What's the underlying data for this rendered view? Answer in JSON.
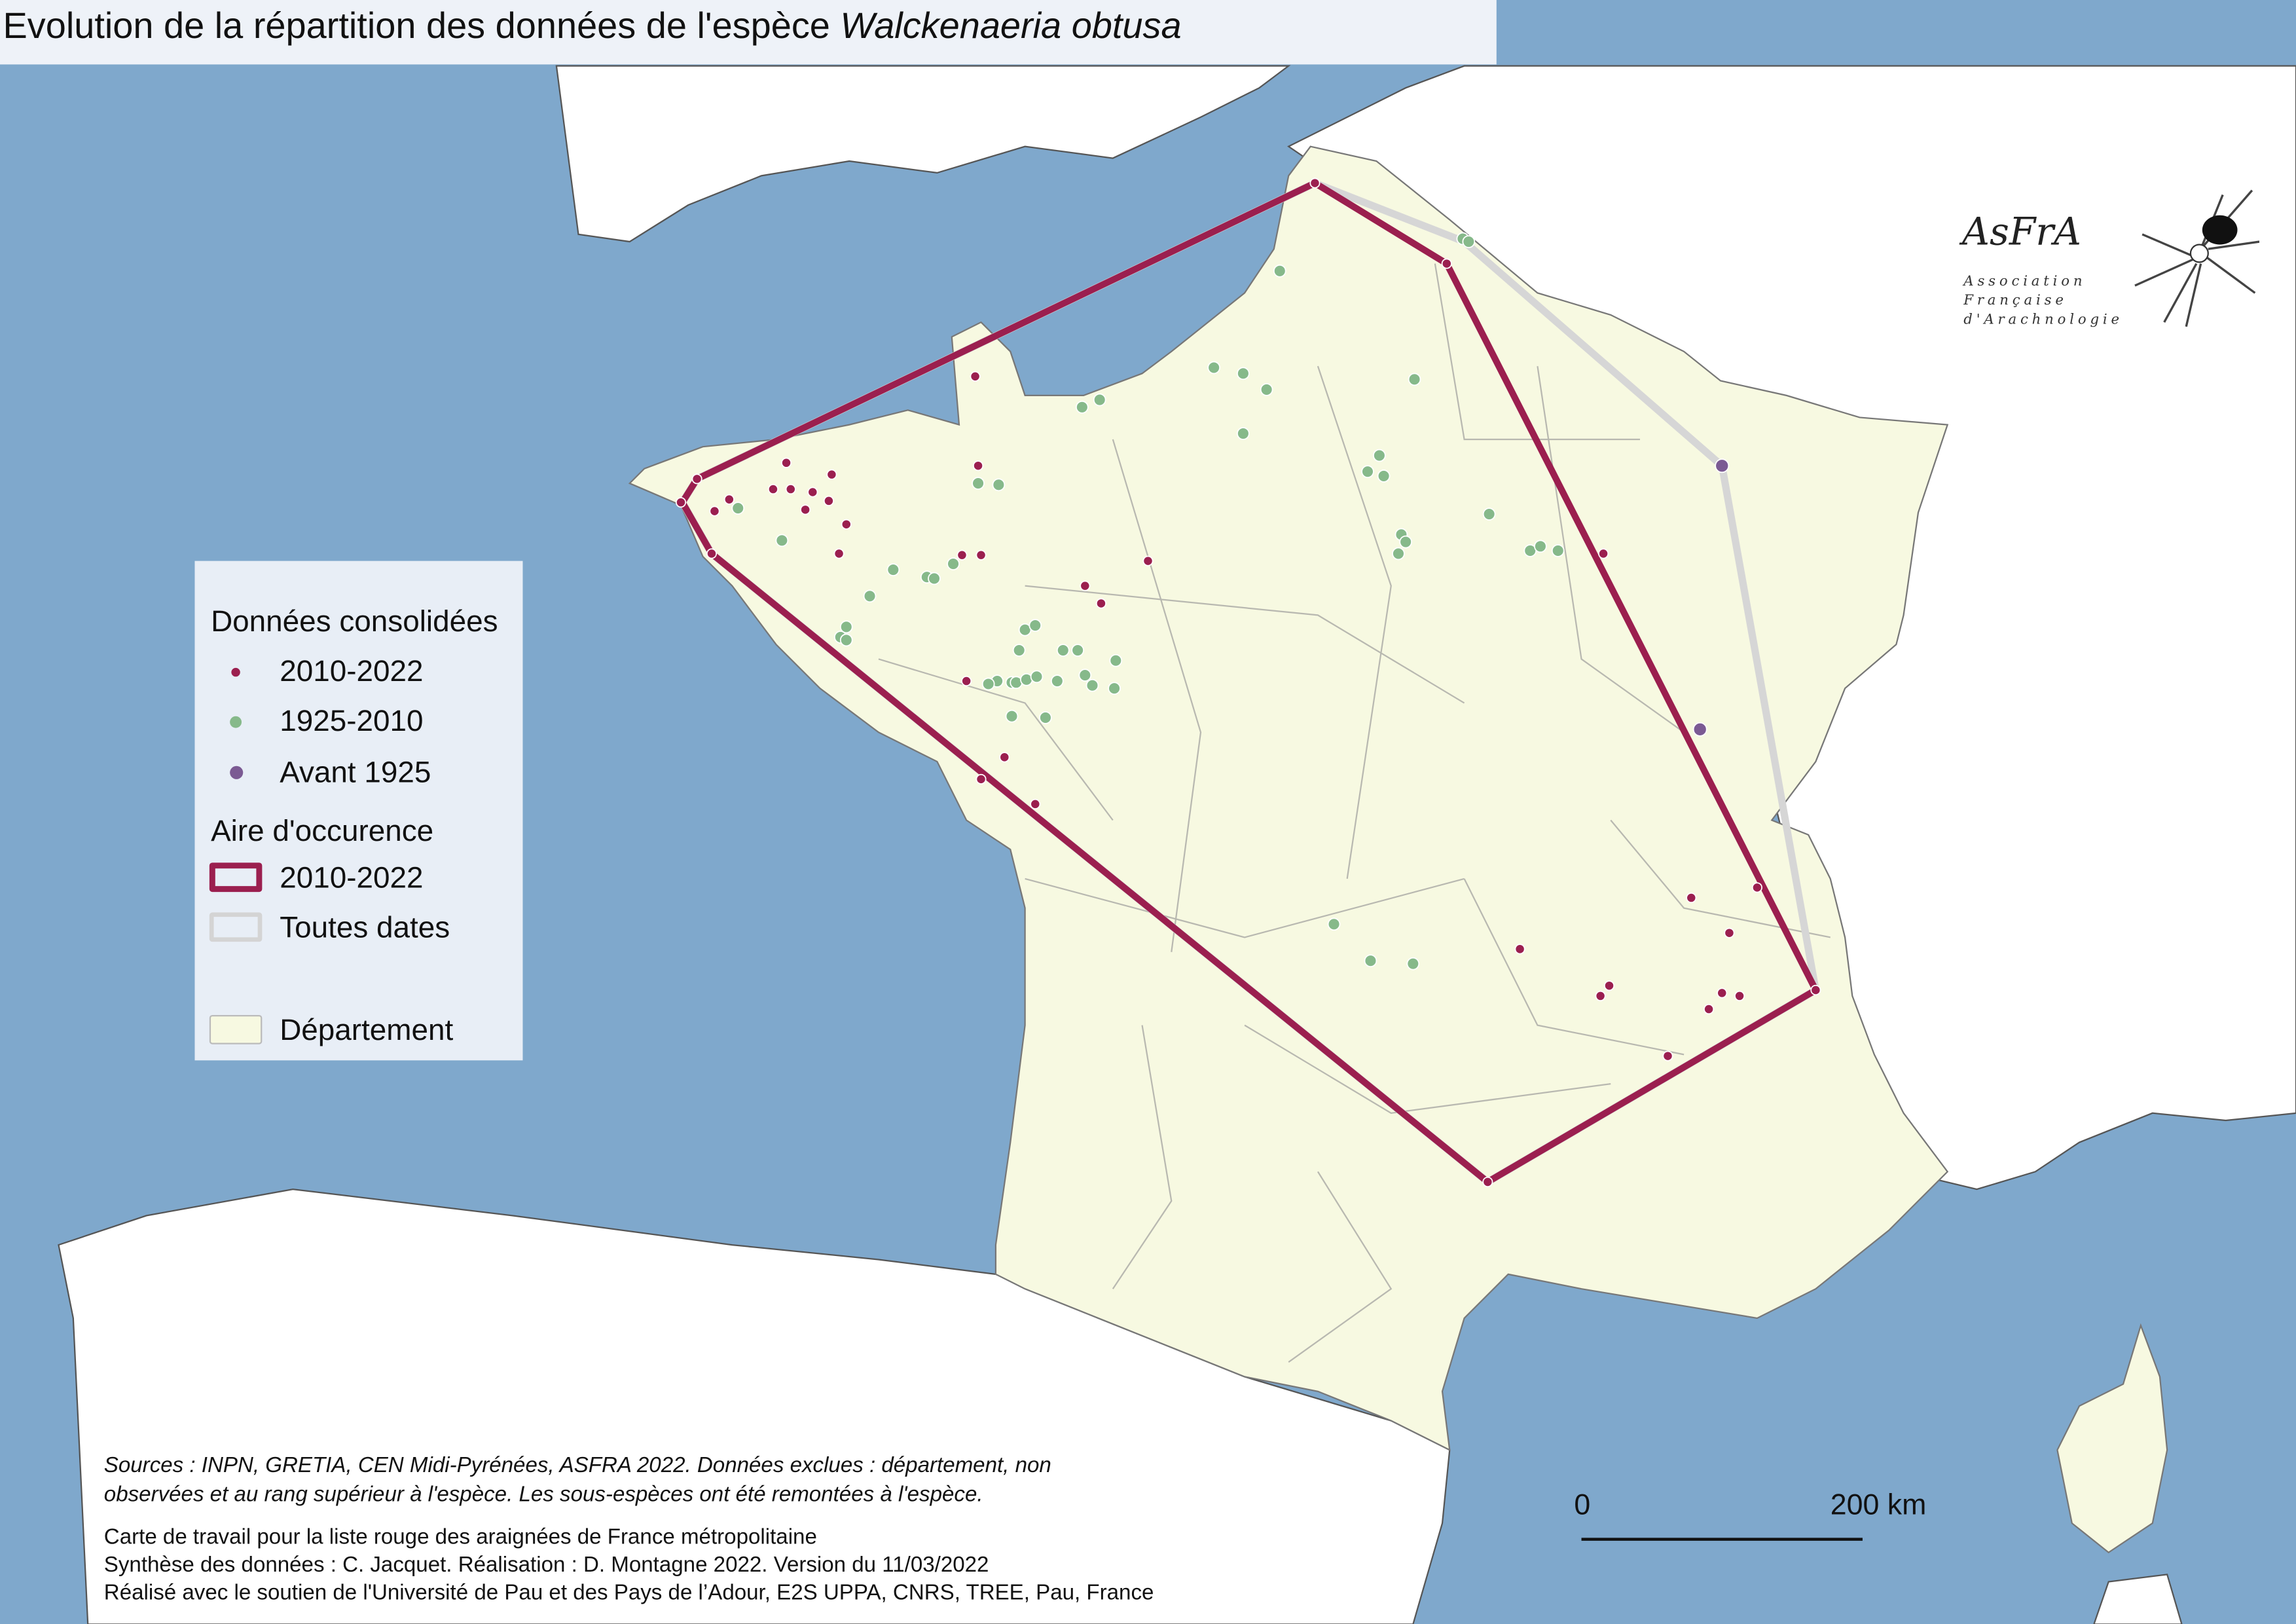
{
  "title": {
    "prefix": "Evolution de la répartition des données de l'espèce ",
    "species": "Walckenaeria obtusa"
  },
  "legend": {
    "group1_title": "Données consolidées",
    "items": [
      {
        "label": "2010-2022",
        "color": "#9b1f4f"
      },
      {
        "label": "1925-2010",
        "color": "#86b98a"
      },
      {
        "label": "Avant 1925",
        "color": "#7b5a93"
      }
    ],
    "group2_title": "Aire d'occurence",
    "areas": [
      {
        "label": "2010-2022",
        "color": "#9b1f4f"
      },
      {
        "label": "Toutes dates",
        "color": "#d4d4d4"
      }
    ],
    "department_label": "Département",
    "department_color": "#f7f9e1"
  },
  "footer": {
    "sources_line1": "Sources : INPN, GRETIA, CEN Midi-Pyrénées, ASFRA 2022. Données exclues : département, non",
    "sources_line2": "observées et au rang supérieur à l'espèce. Les sous-espèces ont été remontées à l'espèce.",
    "line3": "Carte de travail pour la liste rouge des araignées de France métropolitaine",
    "line4": "Synthèse des données : C. Jacquet. Réalisation : D. Montagne 2022. Version du 11/03/2022",
    "line5": "Réalisé avec le soutien de l'Université de Pau et des Pays de l’Adour, E2S UPPA, CNRS, TREE, Pau, France"
  },
  "scale_bar": {
    "start": "0",
    "end": "200 km"
  },
  "logo": {
    "name": "AsFrA",
    "line1": "Association",
    "line2": "Française",
    "line3": "d'Arachnologie"
  },
  "colors": {
    "sea": "#7fa8cc",
    "land_other": "#ffffff",
    "france": "#f7f9e1"
  }
}
